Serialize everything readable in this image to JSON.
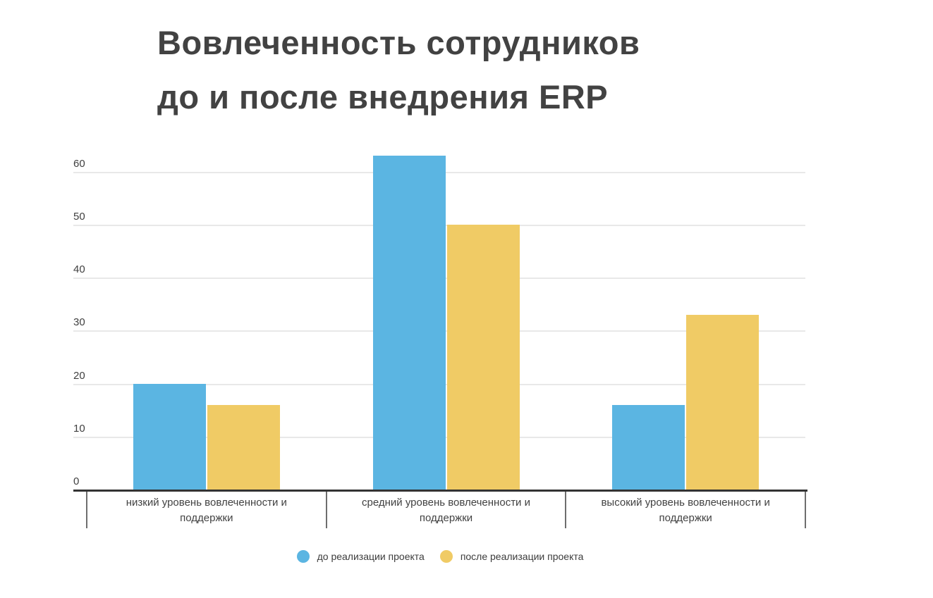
{
  "chart": {
    "title_lines": [
      "Вовлеченность сотрудников",
      "до и после внедрения ERP"
    ]
  },
  "chart_data": {
    "type": "bar",
    "title": "Вовлеченность сотрудников до и после внедрения ERP",
    "categories": [
      "низкий уровень вовлеченности и поддержки",
      "средний уровень вовлеченности и поддержки",
      "высокий уровень вовлеченности и поддержки"
    ],
    "series": [
      {
        "name": "до реализации проекта",
        "color": "#5bb5e2",
        "values": [
          20,
          63,
          16
        ]
      },
      {
        "name": "после реализации проекта",
        "color": "#f0cb65",
        "values": [
          16,
          50,
          33
        ]
      }
    ],
    "y_ticks": [
      0,
      10,
      20,
      30,
      40,
      50,
      60
    ],
    "ylim": [
      0,
      63
    ],
    "xlabel": "",
    "ylabel": "",
    "grid": true,
    "legend_position": "bottom",
    "colors": {
      "title_text": "#424242",
      "axis_text": "#404040",
      "gridline": "#e8e8e8",
      "axis_line": "#333333",
      "tick_line": "#6e6e6e",
      "background": "#ffffff"
    }
  }
}
